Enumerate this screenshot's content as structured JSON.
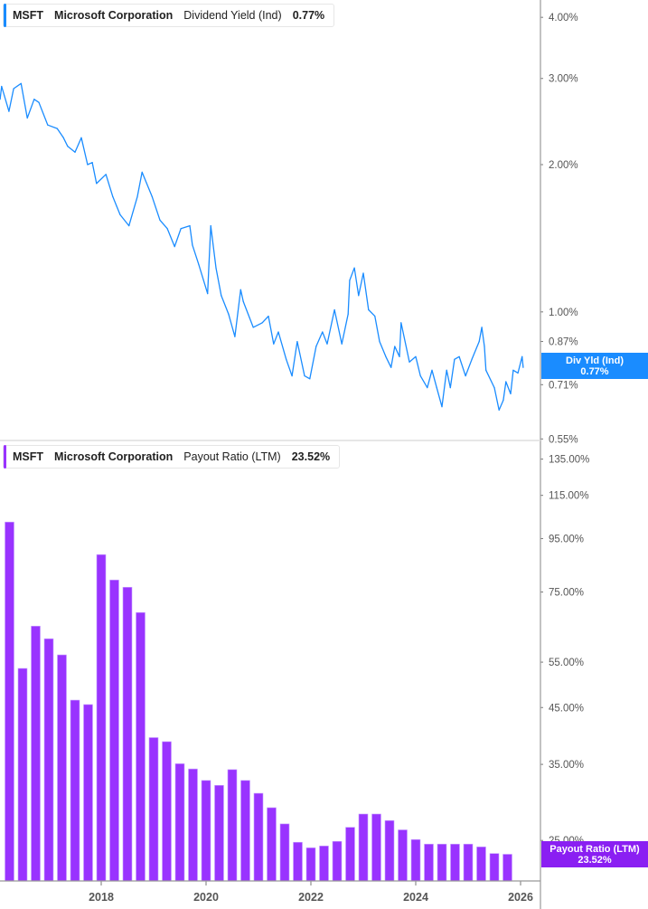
{
  "colors": {
    "yield": "#1a8cff",
    "payout": "#9933ff",
    "payout_badge": "#8a1ff2",
    "axis": "#999999"
  },
  "top_legend": {
    "ticker": "MSFT",
    "company": "Microsoft Corporation",
    "metric": "Dividend Yield (Ind)",
    "value": "0.77%"
  },
  "bottom_legend": {
    "ticker": "MSFT",
    "company": "Microsoft Corporation",
    "metric": "Payout Ratio (LTM)",
    "value": "23.52%"
  },
  "top_badge": {
    "label": "Div Yld (Ind)",
    "value": "0.77%"
  },
  "bottom_badge": {
    "label": "Payout Ratio (LTM)",
    "value": "23.52%"
  },
  "chart_data": [
    {
      "type": "line",
      "name": "Dividend Yield (Ind)",
      "yscale": "log",
      "ylim": [
        0.546,
        4.34
      ],
      "xlim": [
        2016.07,
        2026.43
      ],
      "yticks": [
        4.0,
        3.0,
        2.0,
        1.0,
        0.87,
        0.71,
        0.55
      ],
      "ytick_labels": [
        "4.00%",
        "3.00%",
        "2.00%",
        "1.00%",
        "0.87%",
        "0.71%",
        "0.55%"
      ],
      "x": [
        2016.07,
        2016.1,
        2016.24,
        2016.33,
        2016.47,
        2016.59,
        2016.72,
        2016.81,
        2016.98,
        2017.16,
        2017.28,
        2017.36,
        2017.5,
        2017.62,
        2017.74,
        2017.83,
        2017.91,
        2018.09,
        2018.22,
        2018.36,
        2018.53,
        2018.69,
        2018.78,
        2018.97,
        2019.12,
        2019.26,
        2019.4,
        2019.52,
        2019.69,
        2019.74,
        2019.86,
        2020.03,
        2020.09,
        2020.19,
        2020.29,
        2020.43,
        2020.55,
        2020.66,
        2020.71,
        2020.9,
        2021.07,
        2021.19,
        2021.29,
        2021.38,
        2021.53,
        2021.64,
        2021.74,
        2021.88,
        2021.98,
        2022.1,
        2022.22,
        2022.31,
        2022.45,
        2022.59,
        2022.71,
        2022.74,
        2022.83,
        2022.91,
        2023.0,
        2023.1,
        2023.22,
        2023.31,
        2023.43,
        2023.53,
        2023.6,
        2023.69,
        2023.72,
        2023.88,
        2024.0,
        2024.09,
        2024.22,
        2024.31,
        2024.4,
        2024.5,
        2024.59,
        2024.66,
        2024.74,
        2024.83,
        2024.95,
        2025.07,
        2025.21,
        2025.26,
        2025.31,
        2025.34,
        2025.5,
        2025.59,
        2025.67,
        2025.72,
        2025.81,
        2025.86,
        2025.95,
        2026.03,
        2026.05
      ],
      "y": [
        2.72,
        2.89,
        2.57,
        2.86,
        2.93,
        2.49,
        2.72,
        2.68,
        2.41,
        2.37,
        2.27,
        2.18,
        2.12,
        2.27,
        2.0,
        2.02,
        1.83,
        1.91,
        1.72,
        1.58,
        1.5,
        1.72,
        1.93,
        1.72,
        1.54,
        1.48,
        1.36,
        1.48,
        1.5,
        1.37,
        1.25,
        1.09,
        1.5,
        1.23,
        1.08,
        0.99,
        0.89,
        1.11,
        1.05,
        0.93,
        0.95,
        0.98,
        0.86,
        0.91,
        0.8,
        0.74,
        0.87,
        0.74,
        0.73,
        0.85,
        0.91,
        0.86,
        1.01,
        0.86,
        0.99,
        1.16,
        1.23,
        1.08,
        1.2,
        1.01,
        0.98,
        0.87,
        0.81,
        0.77,
        0.85,
        0.81,
        0.95,
        0.79,
        0.81,
        0.74,
        0.7,
        0.76,
        0.7,
        0.64,
        0.76,
        0.7,
        0.8,
        0.81,
        0.74,
        0.8,
        0.87,
        0.93,
        0.85,
        0.76,
        0.7,
        0.63,
        0.66,
        0.72,
        0.68,
        0.76,
        0.75,
        0.81,
        0.77
      ]
    },
    {
      "type": "bar",
      "name": "Payout Ratio (LTM)",
      "yscale": "log",
      "ylim": [
        20.9,
        146
      ],
      "yticks": [
        135,
        115,
        95,
        75,
        55,
        45,
        35,
        25
      ],
      "ytick_labels": [
        "135.00%",
        "115.00%",
        "95.00%",
        "75.00%",
        "55.00%",
        "45.00%",
        "35.00%",
        "25.00%"
      ],
      "xticks": [
        2018,
        2020,
        2022,
        2024,
        2026
      ],
      "xtick_labels": [
        "2018",
        "2020",
        "2022",
        "2024",
        "2026"
      ],
      "x": [
        2016.25,
        2016.5,
        2016.75,
        2017.0,
        2017.25,
        2017.5,
        2017.75,
        2018.0,
        2018.25,
        2018.5,
        2018.75,
        2019.0,
        2019.25,
        2019.5,
        2019.75,
        2020.0,
        2020.25,
        2020.5,
        2020.75,
        2021.0,
        2021.25,
        2021.5,
        2021.75,
        2022.0,
        2022.25,
        2022.5,
        2022.75,
        2023.0,
        2023.25,
        2023.5,
        2023.75,
        2024.0,
        2024.25,
        2024.5,
        2024.75,
        2025.0,
        2025.25,
        2025.5,
        2025.75
      ],
      "values": [
        102.2,
        53.5,
        64.5,
        61.0,
        56.8,
        46.5,
        45.6,
        88.5,
        79.1,
        76.6,
        68.5,
        39.4,
        38.7,
        35.1,
        34.3,
        32.6,
        31.9,
        34.2,
        32.6,
        30.8,
        28.9,
        26.9,
        24.8,
        24.2,
        24.4,
        24.9,
        26.5,
        28.1,
        28.1,
        27.3,
        26.2,
        25.1,
        24.6,
        24.6,
        24.6,
        24.6,
        24.3,
        23.6,
        23.52
      ]
    }
  ]
}
